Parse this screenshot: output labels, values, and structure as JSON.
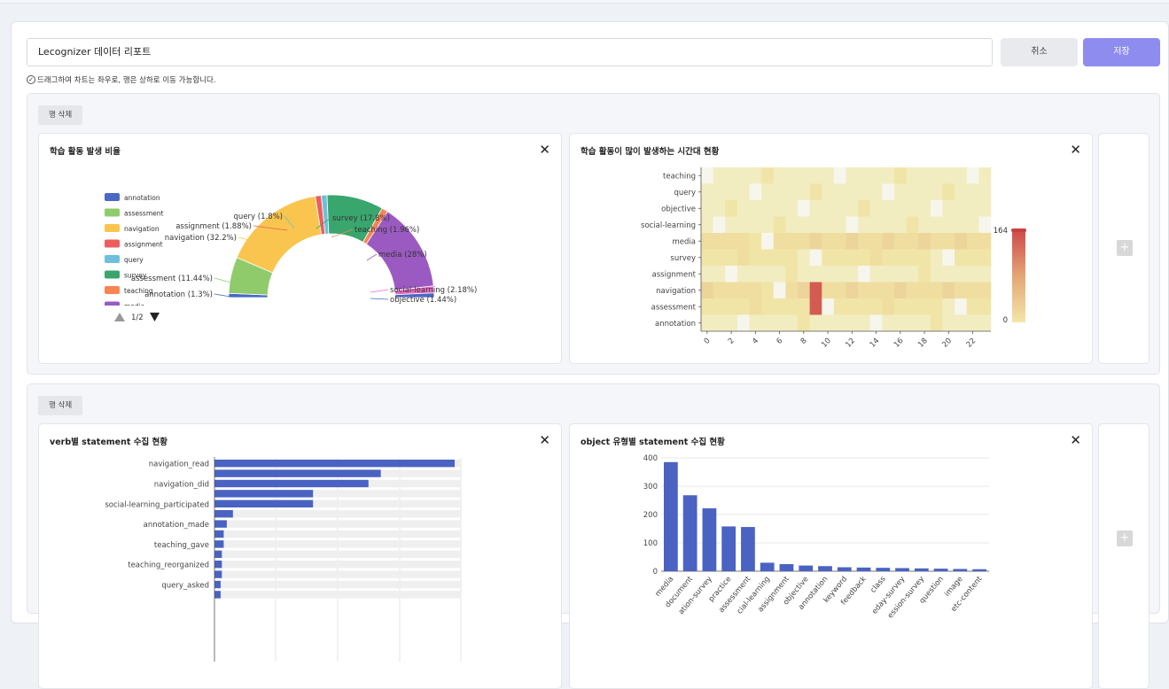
{
  "report_title": "Lecognizer 데이터 리포트",
  "cancel_label": "취소",
  "save_label": "저장",
  "hint": "드래그하여 차트는 좌우로, 행은 상하로 이동 가능합니다.",
  "rows": [
    {
      "delete_label": "행 삭제"
    },
    {
      "delete_label": "행 삭제"
    }
  ],
  "add_icon": "+",
  "close_icon": "✕",
  "chart_data": [
    {
      "type": "pie",
      "title": "학습 활동 발생 비율",
      "variant": "half-donut",
      "slices": [
        {
          "name": "annotation",
          "label": "annotation (1.3%)",
          "value": 1.3,
          "color": "#4a68c5"
        },
        {
          "name": "assessment",
          "label": "assessment (11.44%)",
          "value": 11.44,
          "color": "#8fcb6a"
        },
        {
          "name": "navigation",
          "label": "navigation (32.2%)",
          "value": 32.2,
          "color": "#f9c54e"
        },
        {
          "name": "assignment",
          "label": "assignment (1.88%)",
          "value": 1.88,
          "color": "#ec5e5e"
        },
        {
          "name": "query",
          "label": "query (1.8%)",
          "value": 1.8,
          "color": "#6fbfdc"
        },
        {
          "name": "survey",
          "label": "survey (17.8%)",
          "value": 17.8,
          "color": "#39a66e"
        },
        {
          "name": "teaching",
          "label": "teaching (1.96%)",
          "value": 1.96,
          "color": "#f98454"
        },
        {
          "name": "media",
          "label": "media (28%)",
          "value": 28,
          "color": "#9b5ac1"
        },
        {
          "name": "social-learning",
          "label": "social-learning (2.18%)",
          "value": 2.18,
          "color": "#e86bc5"
        },
        {
          "name": "objective",
          "label": "objective (1.44%)",
          "value": 1.44,
          "color": "#4a68c5"
        }
      ],
      "legend_visible": [
        "annotation",
        "assessment",
        "navigation",
        "assignment",
        "query",
        "survey",
        "teaching",
        "media"
      ],
      "legend_page": "1/2"
    },
    {
      "type": "heatmap",
      "title": "학습 활동이 많이 발생하는 시간대 현황",
      "y_categories": [
        "teaching",
        "query",
        "objective",
        "social-learning",
        "media",
        "survey",
        "assignment",
        "navigation",
        "assessment",
        "annotation"
      ],
      "x_ticks": [
        "0",
        "2",
        "4",
        "6",
        "8",
        "10",
        "12",
        "14",
        "16",
        "18",
        "20",
        "22"
      ],
      "value_range": [
        0,
        164
      ],
      "max_cell": {
        "row": "navigation/assessment",
        "hour": 9
      }
    },
    {
      "type": "bar",
      "orientation": "horizontal",
      "title": "verb별 statement 수집 현황",
      "categories": [
        "navigation_read",
        "",
        "navigation_did",
        "",
        "social-learning_participated",
        "",
        "annotation_made",
        "",
        "teaching_gave",
        "",
        "teaching_reorganized",
        "",
        "query_asked",
        ""
      ],
      "values": [
        390,
        270,
        250,
        160,
        160,
        30,
        20,
        15,
        15,
        12,
        12,
        12,
        10,
        10
      ]
    },
    {
      "type": "bar",
      "title": "object 유형별 statement 수집 현황",
      "categories": [
        "media",
        "document",
        "ation-survey",
        "practice",
        "assessment",
        "cial-learning",
        "assignment",
        "objective",
        "annotation",
        "keyword",
        "feedback",
        "class",
        "eday-survey",
        "ession-survey",
        "question",
        "image",
        "etc-content"
      ],
      "values": [
        385,
        268,
        222,
        158,
        156,
        30,
        25,
        20,
        18,
        14,
        13,
        12,
        11,
        10,
        9,
        8,
        7
      ],
      "yticks": [
        0,
        100,
        200,
        300,
        400
      ],
      "ylim": [
        0,
        400
      ]
    }
  ]
}
